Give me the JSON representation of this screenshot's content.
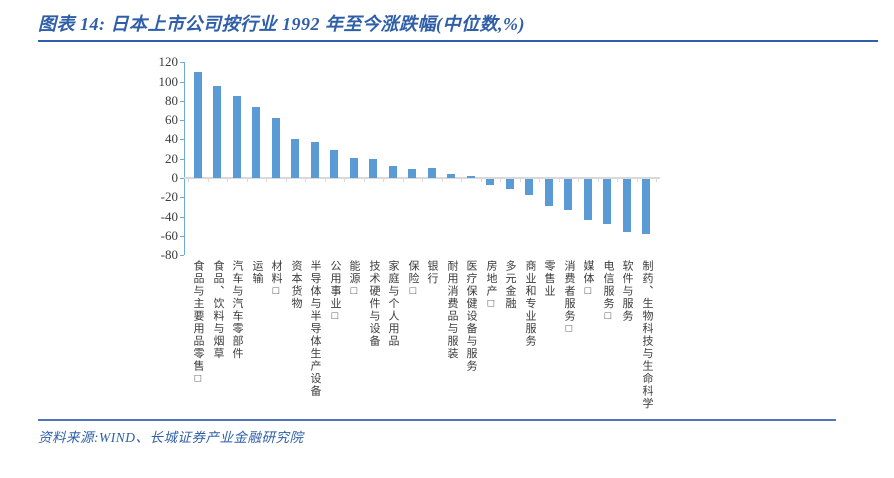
{
  "header": {
    "title": "图表 14: 日本上市公司按行业 1992 年至今涨跌幅(中位数,%)"
  },
  "footer": {
    "source": "资料来源:WIND、长城证券产业金融研究院"
  },
  "colors": {
    "accent_blue": "#2E5FA8",
    "title_rule": "#2E5FA8",
    "source_rule": "#4F74BC",
    "bar": "#5B9BD5",
    "y_axis": "#6FA8DC",
    "zero_line": "#D9D9D9",
    "axis_text": "#3b3b3b"
  },
  "chart_data": {
    "type": "bar",
    "title": "日本上市公司按行业 1992 年至今涨跌幅(中位数,%)",
    "xlabel": "",
    "ylabel": "",
    "ylim": [
      -80,
      120
    ],
    "yticks": [
      120,
      100,
      80,
      60,
      40,
      20,
      0,
      -20,
      -40,
      -60,
      -80
    ],
    "grid": false,
    "legend": "none",
    "bar_color": "#5B9BD5",
    "categories": [
      "食品与主要用品零售□",
      "食品、饮料与烟草",
      "汽车与汽车零部件",
      "运输",
      "材料□",
      "资本货物",
      "半导体与半导体生产设备",
      "公用事业□",
      "能源□",
      "技术硬件与设备",
      "家庭与个人用品",
      "保险□",
      "银行",
      "耐用消费品与服装",
      "医疗保健设备与服务",
      "房地产□",
      "多元金融",
      "商业和专业服务",
      "零售业",
      "消费者服务□",
      "媒体□",
      "电信服务□",
      "软件与服务",
      "制药、生物科技与生命科学"
    ],
    "values": [
      110,
      95,
      85,
      74,
      62,
      40,
      37,
      29,
      21,
      20,
      12,
      9,
      10,
      4,
      2,
      -6,
      -10,
      -17,
      -28,
      -32,
      -43,
      -47,
      -55,
      -57
    ]
  }
}
